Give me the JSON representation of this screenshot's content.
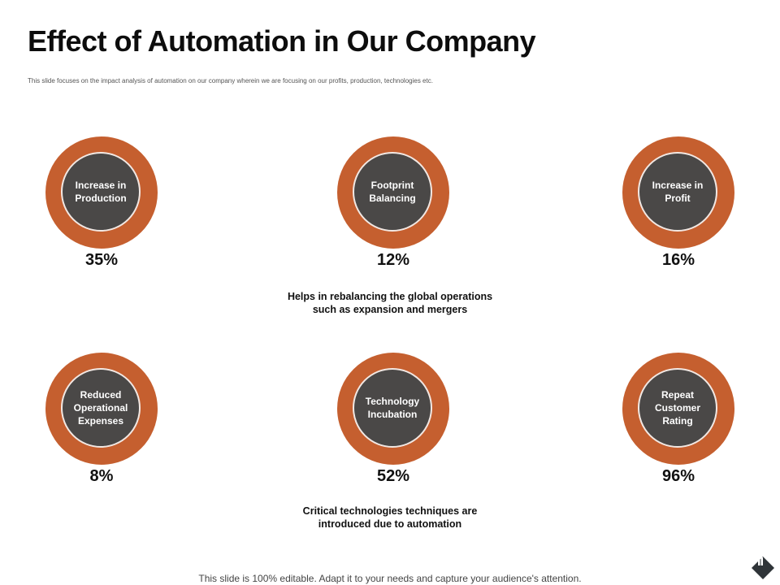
{
  "slide": {
    "title": "Effect of Automation in Our Company",
    "subtitle": "This slide focuses on the impact analysis of automation on our company wherein we are focusing on our profits, production, technologies etc."
  },
  "metrics": [
    {
      "label": "Increase in Production",
      "value": "35%"
    },
    {
      "label": "Footprint Balancing",
      "value": "12%"
    },
    {
      "label": "Increase in Profit",
      "value": "16%"
    },
    {
      "label": "Reduced Operational Expenses",
      "value": "8%"
    },
    {
      "label": "Technology Incubation",
      "value": "52%"
    },
    {
      "label": "Repeat Customer Rating",
      "value": "96%"
    }
  ],
  "notes": {
    "footprint": "Helps in rebalancing the global operations such as expansion and mergers",
    "technology": "Critical technologies techniques are introduced due to automation"
  },
  "footer": "This slide is 100% editable. Adapt it to your needs and capture your audience's attention.",
  "colors": {
    "ring": "#c55f2f",
    "inner": "#4a4847"
  },
  "icons": {
    "corner": "diamond-icon"
  }
}
